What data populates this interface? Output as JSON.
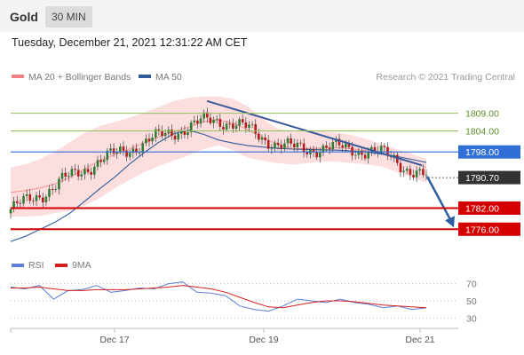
{
  "header": {
    "asset": "Gold",
    "timeframe": "30 MIN",
    "datetime": "Tuesday, December 21, 2021 12:31:22 AM CET"
  },
  "legend": {
    "ma20": "MA 20 + Bollinger Bands",
    "ma50": "MA 50",
    "ma20_color": "#f08080",
    "ma50_color": "#2e5b9a"
  },
  "credit": "Research © 2021 Trading Central",
  "rsi_legend": {
    "rsi": "RSI",
    "ma9": "9MA",
    "rsi_color": "#5b7ed6",
    "ma9_color": "#d62020"
  },
  "chart_data": [
    {
      "type": "line",
      "subtype": "candlestick",
      "title": "Gold",
      "x_tick_labels": [
        "Dec 17",
        "Dec 19",
        "Dec 21"
      ],
      "ylim": [
        1770,
        1817
      ],
      "last_price": 1790.7,
      "levels": [
        {
          "label": "1809.00",
          "value": 1809.0,
          "kind": "resistance",
          "color": "#8fc15b"
        },
        {
          "label": "1804.00",
          "value": 1804.0,
          "kind": "resistance",
          "color": "#8fc15b"
        },
        {
          "label": "1798.00",
          "value": 1798.0,
          "kind": "pivot",
          "color": "#2f6fd6"
        },
        {
          "label": "1790.70",
          "value": 1790.7,
          "kind": "last",
          "color": "#333333"
        },
        {
          "label": "1782.00",
          "value": 1782.0,
          "kind": "support",
          "color": "#d40000"
        },
        {
          "label": "1776.00",
          "value": 1776.0,
          "kind": "support",
          "color": "#d40000"
        }
      ],
      "series": [
        {
          "name": "MA 20 + Bollinger Bands",
          "values": [
            1786.5,
            1787.0,
            1787.8,
            1788.9,
            1790.8,
            1793.2,
            1795.5,
            1797.2,
            1798.8,
            1800.6,
            1802.3,
            1803.8,
            1805.1,
            1806.6,
            1807.1,
            1806.2,
            1804.3,
            1802.0,
            1800.2,
            1799.0,
            1798.9,
            1799.1,
            1799.2,
            1798.9,
            1798.3,
            1797.4,
            1796.2,
            1795.0,
            1793.6
          ]
        },
        {
          "name": "MA 50",
          "values": [
            1772.5,
            1774.0,
            1776.0,
            1778.0,
            1780.6,
            1784.0,
            1787.5,
            1790.8,
            1794.5,
            1797.8,
            1800.8,
            1803.2,
            1804.2,
            1803.0,
            1801.4,
            1800.5,
            1799.8,
            1799.4,
            1799.0,
            1798.8,
            1798.7,
            1798.6,
            1798.5,
            1798.3,
            1798.0,
            1797.4,
            1796.7,
            1795.9,
            1795.0
          ]
        }
      ],
      "bollinger_upper": [
        1793.5,
        1794.5,
        1796.0,
        1798.2,
        1800.8,
        1803.5,
        1805.4,
        1806.5,
        1807.8,
        1809.2,
        1810.8,
        1812.5,
        1813.4,
        1813.8,
        1813.8,
        1813.1,
        1810.9,
        1807.4,
        1804.6,
        1803.9,
        1803.8,
        1803.9,
        1803.5,
        1802.8,
        1801.6,
        1800.2,
        1798.8,
        1797.5,
        1796.0
      ],
      "bollinger_lower": [
        1779.5,
        1779.6,
        1779.8,
        1780.6,
        1781.3,
        1782.7,
        1784.8,
        1787.6,
        1790.0,
        1792.2,
        1794.0,
        1795.6,
        1797.0,
        1798.8,
        1799.9,
        1798.4,
        1796.3,
        1795.5,
        1794.8,
        1794.4,
        1794.8,
        1795.3,
        1795.2,
        1794.8,
        1794.4,
        1793.8,
        1792.3,
        1790.8,
        1789.2
      ],
      "trendline": {
        "from": 1812.5,
        "to": 1794.2,
        "kind": "resistance"
      },
      "forecast_arrow": {
        "from": 1791.0,
        "to": 1776.5
      }
    },
    {
      "type": "line",
      "title": "RSI",
      "y_tick_labels": [
        "70",
        "50",
        "30"
      ],
      "ylim": [
        20,
        80
      ],
      "series": [
        {
          "name": "RSI",
          "values": [
            66,
            64,
            68,
            52,
            62,
            63,
            68,
            60,
            62,
            65,
            64,
            70,
            72,
            60,
            59,
            56,
            44,
            40,
            38,
            44,
            52,
            50,
            48,
            52,
            48,
            46,
            42,
            44,
            40,
            42
          ]
        },
        {
          "name": "9MA",
          "values": [
            65,
            65,
            66,
            64,
            62,
            62,
            63,
            63,
            63,
            64,
            65,
            66,
            68,
            66,
            64,
            60,
            54,
            48,
            43,
            42,
            45,
            48,
            50,
            50,
            49,
            47,
            45,
            44,
            43,
            42
          ]
        }
      ]
    }
  ]
}
